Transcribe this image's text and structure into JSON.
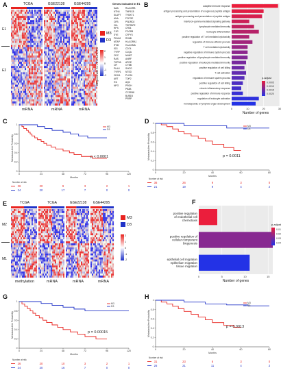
{
  "panel_A": {
    "label": "A",
    "columns": [
      "TCGA",
      "GSE22138",
      "GSE44295"
    ],
    "bottom_labels": [
      "mRNA",
      "mRNA",
      "mRNA"
    ],
    "cluster_labels": [
      "E1",
      "E2"
    ],
    "legend": [
      {
        "name": "M3",
        "color": "#e8231f"
      },
      {
        "name": "D3",
        "color": "#2033c8"
      }
    ],
    "scale_ticks": [
      "2",
      "1",
      "0",
      "-1",
      "-2"
    ],
    "side_caption": "DE genes with FC > 2 in the 3, 6, 8",
    "genes_header": "Genes included in E1",
    "genes_col1": [
      "NAA",
      "NTN4",
      "SLAPT",
      "ANA",
      "CFB",
      "CIA",
      "RPS",
      "C1R",
      "SYE",
      "PDLIM",
      "MTAP",
      "IFI30",
      "ISG",
      "TYRP",
      "CDC",
      "RAS",
      "TOP2A",
      "CFI",
      "PLAU",
      "TYRP1",
      "CDCA",
      "ART",
      "ITA",
      "NPG"
    ],
    "genes_col2": [
      "RLA-DRB",
      "TNF6C8",
      "TYBXT1",
      "FCPOE",
      "PSDRD2",
      "TSP2BP2",
      "CFB4",
      "FCGR8",
      "CFPY3",
      "RG6B",
      "HLA-DRA1",
      "HLA-DMA",
      "CD74",
      "C1QA",
      "NNMT",
      "ANRF",
      "APOE",
      "CYBB",
      "SNCG",
      "NTSD",
      "PLG24",
      "TOP2",
      "AQ4",
      "PRGH",
      "PB3B",
      "CCSR48",
      "BUB1B",
      "PRRP"
    ]
  },
  "panel_B": {
    "label": "B",
    "chart_data": {
      "type": "bar",
      "orientation": "horizontal",
      "categories": [
        "adaptive immune response",
        "antigen processing and presentation of exogenous peptide antigen",
        "antigen processing and presentation of peptide antigen",
        "interferon-gamma-mediated signaling pathway",
        "lymphocyte mediated immunity",
        "leukocyte differentiation",
        "positive regulation of T cell mediated cytotoxicity",
        "regulation of immune effector process",
        "T cell mediated cytotoxicity",
        "negative regulation of immune system process",
        "positive regulation of lymphocyte mediated immunity",
        "positive regulation of leukocyte mediated immunity",
        "positive regulation of cell killing",
        "T cell activation",
        "regulation of immune system process",
        "positive regulation of cell killing",
        "chronic inflammatory response",
        "positive regulation of immune response",
        "regulation of leukocyte activation",
        "hematopoietic or lymphoid organ development"
      ],
      "values": [
        29,
        20,
        19,
        11,
        14,
        17,
        11,
        13,
        10,
        10,
        10,
        9,
        8,
        9,
        8,
        7,
        6,
        7,
        17,
        15
      ],
      "xlabel": "Number of genes",
      "xlim": [
        0,
        30
      ],
      "xticks": [
        0,
        10,
        20,
        30
      ],
      "legend_title": "p.adjust",
      "legend_ticks": [
        "0.0005",
        "0.0010",
        "0.0015",
        "0.0020"
      ]
    }
  },
  "panel_C": {
    "label": "C",
    "chart_data": {
      "type": "line",
      "title": "",
      "ylabel": "Metastasis-free Probability",
      "xlabel": "Months",
      "xticks": [
        0,
        24,
        48,
        72,
        96,
        120
      ],
      "yticks": [
        0,
        0.2,
        0.4,
        0.6,
        0.8,
        1
      ],
      "xlim": [
        0,
        120
      ],
      "ylim": [
        0,
        1
      ],
      "series": [
        {
          "name": "M3",
          "color": "#e8231f",
          "x": [
            0,
            3,
            5,
            8,
            10,
            12,
            14,
            17,
            20,
            24,
            27,
            30,
            35,
            40,
            48,
            55,
            60,
            68,
            80,
            96
          ],
          "y": [
            1,
            0.96,
            0.92,
            0.88,
            0.84,
            0.8,
            0.76,
            0.72,
            0.68,
            0.64,
            0.6,
            0.56,
            0.52,
            0.48,
            0.44,
            0.4,
            0.36,
            0.32,
            0.28,
            0.28
          ]
        },
        {
          "name": "D3",
          "color": "#2033c8",
          "x": [
            0,
            10,
            20,
            28,
            36,
            48,
            56,
            65,
            75,
            96
          ],
          "y": [
            1,
            1,
            0.96,
            0.92,
            0.88,
            0.84,
            0.8,
            0.76,
            0.72,
            0.72
          ]
        }
      ],
      "annotation": "p < 0.0001",
      "risk_title": "Number at risk",
      "risk_rows": [
        {
          "name": "M3",
          "color": "#e8231f",
          "values": [
            "26",
            "20",
            "9",
            "3",
            "2",
            "1"
          ]
        },
        {
          "name": "D3",
          "color": "#2033c8",
          "values": [
            "24",
            "20",
            "17",
            "7",
            "0",
            "0"
          ]
        }
      ]
    }
  },
  "panel_D": {
    "label": "D",
    "chart_data": {
      "type": "line",
      "title": "",
      "ylabel": "Metastasis-free Probability",
      "xlabel": "Months",
      "xticks": [
        0,
        20,
        40,
        60,
        80
      ],
      "yticks": [
        0,
        0.2,
        0.4,
        0.6,
        0.8,
        1
      ],
      "xlim": [
        0,
        80
      ],
      "ylim": [
        0,
        1
      ],
      "series": [
        {
          "name": "M3",
          "color": "#e8231f",
          "x": [
            0,
            4,
            8,
            12,
            16,
            20,
            25,
            30,
            35,
            40,
            48,
            55,
            60
          ],
          "y": [
            1,
            0.97,
            0.93,
            0.88,
            0.83,
            0.78,
            0.73,
            0.68,
            0.62,
            0.55,
            0.48,
            0.42,
            0.42
          ]
        },
        {
          "name": "D3",
          "color": "#2033c8",
          "x": [
            0,
            10,
            20,
            35,
            50,
            65,
            80
          ],
          "y": [
            1,
            1,
            0.95,
            0.95,
            0.9,
            0.9,
            0.9
          ]
        }
      ],
      "annotation": "p = 0.0011",
      "risk_title": "Number at risk",
      "risk_rows": [
        {
          "name": "M3",
          "color": "#e8231f",
          "values": [
            "36",
            "26",
            "9",
            "3",
            "0"
          ]
        },
        {
          "name": "D3",
          "color": "#2033c8",
          "values": [
            "21",
            "19",
            "9",
            "4",
            "2"
          ]
        }
      ]
    }
  },
  "panel_E": {
    "label": "E",
    "columns": [
      "TCGA",
      "TCGA",
      "GSE22138",
      "GSE44295"
    ],
    "bottom_labels": [
      "methylation",
      "mRNA",
      "mRNA",
      "mRNA"
    ],
    "cluster_labels": [
      "M2",
      "M1"
    ],
    "legend": [
      {
        "name": "M3",
        "color": "#e8231f"
      },
      {
        "name": "D3",
        "color": "#2033c8"
      }
    ],
    "scale_ticks": [
      "2",
      "1",
      "0",
      "-1",
      "-2"
    ]
  },
  "panel_F": {
    "label": "F",
    "chart_data": {
      "type": "bar",
      "orientation": "horizontal",
      "categories": [
        "positive regulation of endothelial cell chemotaxis",
        "positive regulation of cellular component biogenesis",
        "epithelial cell migration epithelium migration tissue migration"
      ],
      "values": [
        4,
        16,
        11
      ],
      "xlabel": "Number of genes",
      "xlim": [
        0,
        16
      ],
      "xticks": [
        0,
        5,
        10,
        15
      ],
      "legend_title": "p.adjust",
      "legend_ticks": [
        "0.010",
        "0.020",
        "0.030",
        "0.040"
      ]
    }
  },
  "panel_G": {
    "label": "G",
    "chart_data": {
      "type": "line",
      "title": "",
      "ylabel": "Metastasis-free Probability",
      "xlabel": "Months",
      "xticks": [
        0,
        24,
        48,
        72,
        96,
        120
      ],
      "yticks": [
        0,
        0.2,
        0.4,
        0.6,
        0.8,
        1
      ],
      "xlim": [
        0,
        120
      ],
      "ylim": [
        0,
        1
      ],
      "series": [
        {
          "name": "M3",
          "color": "#e8231f",
          "x": [
            0,
            3,
            6,
            9,
            12,
            15,
            18,
            22,
            26,
            30,
            36,
            42,
            48,
            56,
            64,
            72,
            84,
            96
          ],
          "y": [
            1,
            0.95,
            0.9,
            0.85,
            0.8,
            0.75,
            0.7,
            0.65,
            0.6,
            0.55,
            0.5,
            0.45,
            0.4,
            0.35,
            0.3,
            0.25,
            0.2,
            0.2
          ]
        },
        {
          "name": "D3",
          "color": "#2033c8",
          "x": [
            0,
            12,
            24,
            36,
            48,
            60,
            72,
            84,
            120
          ],
          "y": [
            1,
            1,
            0.96,
            0.92,
            0.88,
            0.84,
            0.8,
            0.8,
            0.8
          ]
        }
      ],
      "annotation": "p = 0.00015",
      "risk_title": "Number at risk",
      "risk_rows": [
        {
          "name": "M3",
          "color": "#e8231f",
          "values": [
            "26",
            "20",
            "10",
            "3",
            "2",
            "1"
          ]
        },
        {
          "name": "D3",
          "color": "#2033c8",
          "values": [
            "24",
            "20",
            "16",
            "7",
            "0",
            "0"
          ]
        }
      ]
    }
  },
  "panel_H": {
    "label": "H",
    "chart_data": {
      "type": "line",
      "title": "",
      "ylabel": "Metastasis-free Probability",
      "xlabel": "Months",
      "xticks": [
        0,
        20,
        40,
        60,
        80
      ],
      "yticks": [
        0,
        0.2,
        0.4,
        0.6,
        0.8,
        1
      ],
      "xlim": [
        0,
        80
      ],
      "ylim": [
        0,
        1
      ],
      "series": [
        {
          "name": "M3",
          "color": "#e8231f",
          "x": [
            0,
            4,
            8,
            12,
            16,
            20,
            25,
            30,
            35,
            40,
            48,
            55,
            60
          ],
          "y": [
            1,
            0.96,
            0.92,
            0.87,
            0.82,
            0.76,
            0.7,
            0.64,
            0.58,
            0.52,
            0.46,
            0.42,
            0.42
          ]
        },
        {
          "name": "D3",
          "color": "#2033c8",
          "x": [
            0,
            10,
            20,
            35,
            50,
            65,
            80
          ],
          "y": [
            1,
            1,
            0.96,
            0.92,
            0.9,
            0.88,
            0.88
          ]
        }
      ],
      "annotation": "p = 0.0013",
      "risk_title": "Number at risk",
      "risk_rows": [
        {
          "name": "M3",
          "color": "#e8231f",
          "values": [
            "31",
            "23",
            "6",
            "3",
            "0"
          ]
        },
        {
          "name": "D3",
          "color": "#2033c8",
          "values": [
            "26",
            "21",
            "11",
            "4",
            "2"
          ]
        }
      ]
    }
  }
}
